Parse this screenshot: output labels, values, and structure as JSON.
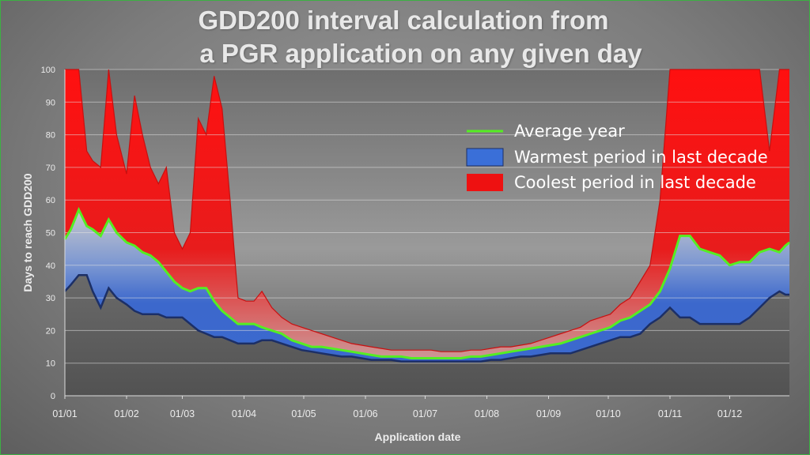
{
  "title_line1": "GDD200 interval calculation from",
  "title_line2": "a PGR application on any given day",
  "chart_data": {
    "type": "area",
    "xlabel": "Application date",
    "ylabel": "Days to reach GDD200",
    "ylim": [
      0,
      100
    ],
    "yticks": [
      "0",
      "10",
      "20",
      "30",
      "40",
      "50",
      "60",
      "70",
      "80",
      "90",
      "100"
    ],
    "xticks": [
      "01/01",
      "01/02",
      "01/03",
      "01/04",
      "01/05",
      "01/06",
      "01/07",
      "01/08",
      "01/09",
      "01/10",
      "01/11",
      "01/12"
    ],
    "x_day_of_year": [
      1,
      4,
      8,
      12,
      15,
      19,
      23,
      27,
      32,
      36,
      40,
      44,
      48,
      52,
      56,
      60,
      64,
      68,
      72,
      76,
      80,
      84,
      88,
      92,
      96,
      100,
      105,
      110,
      115,
      120,
      125,
      130,
      135,
      140,
      145,
      150,
      155,
      160,
      165,
      170,
      175,
      180,
      185,
      190,
      195,
      200,
      205,
      210,
      215,
      220,
      225,
      230,
      235,
      240,
      245,
      250,
      255,
      260,
      265,
      270,
      275,
      280,
      285,
      290,
      295,
      300,
      305,
      310,
      315,
      320,
      325,
      330,
      335,
      340,
      345,
      350,
      355,
      360,
      363,
      365
    ],
    "series": [
      {
        "name": "Average year",
        "color": "#55ee22",
        "values": [
          48,
          51,
          57,
          52,
          51,
          49,
          54,
          50,
          47,
          46,
          44,
          43,
          41,
          38,
          35,
          33,
          32,
          33,
          33,
          29,
          26,
          24,
          22,
          22,
          22,
          21,
          20,
          19,
          17,
          16,
          15,
          15,
          14.5,
          14,
          13.5,
          13,
          12.5,
          12,
          12,
          12,
          11.5,
          11.5,
          11.5,
          11.5,
          11.5,
          11.5,
          12,
          12,
          12.5,
          13,
          13.5,
          14,
          14.5,
          15,
          15.5,
          16,
          17,
          18,
          19,
          20,
          21,
          23,
          24,
          26,
          28,
          32,
          39,
          49,
          49,
          45,
          44,
          43,
          40,
          41,
          41,
          44,
          45,
          44,
          46,
          47
        ]
      },
      {
        "name": "Warmest period in last decade",
        "color": "#3a6fd8",
        "values": [
          32,
          34,
          37,
          37,
          32,
          27,
          33,
          30,
          28,
          26,
          25,
          25,
          25,
          24,
          24,
          24,
          22,
          20,
          19,
          18,
          18,
          17,
          16,
          16,
          16,
          17,
          17,
          16,
          15,
          14,
          13.5,
          13,
          12.5,
          12,
          12,
          11.5,
          11,
          11,
          11,
          10.5,
          10.5,
          10.5,
          10.5,
          10.5,
          10.5,
          10.5,
          10.5,
          10.5,
          11,
          11,
          11.5,
          12,
          12,
          12.5,
          13,
          13,
          13,
          14,
          15,
          16,
          17,
          18,
          18,
          19,
          22,
          24,
          27,
          24,
          24,
          22,
          22,
          22,
          22,
          22,
          24,
          27,
          30,
          32,
          31,
          31
        ]
      },
      {
        "name": "Coolest period in last decade",
        "color": "#ee1111",
        "values": [
          100,
          100,
          100,
          75,
          72,
          70,
          100,
          80,
          68,
          92,
          80,
          70,
          65,
          70,
          50,
          45,
          50,
          85,
          80,
          98,
          88,
          60,
          30,
          29,
          29,
          32,
          27,
          24,
          22,
          21,
          20,
          19,
          18,
          17,
          16,
          15.5,
          15,
          14.5,
          14,
          14,
          14,
          14,
          14,
          13.5,
          13.5,
          13.5,
          14,
          14,
          14.5,
          15,
          15,
          15.5,
          16,
          17,
          18,
          19,
          20,
          21,
          23,
          24,
          25,
          28,
          30,
          35,
          40,
          60,
          100,
          100,
          100,
          100,
          100,
          100,
          100,
          100,
          100,
          100,
          75,
          100,
          100,
          100
        ]
      }
    ],
    "legend": "top-right"
  }
}
